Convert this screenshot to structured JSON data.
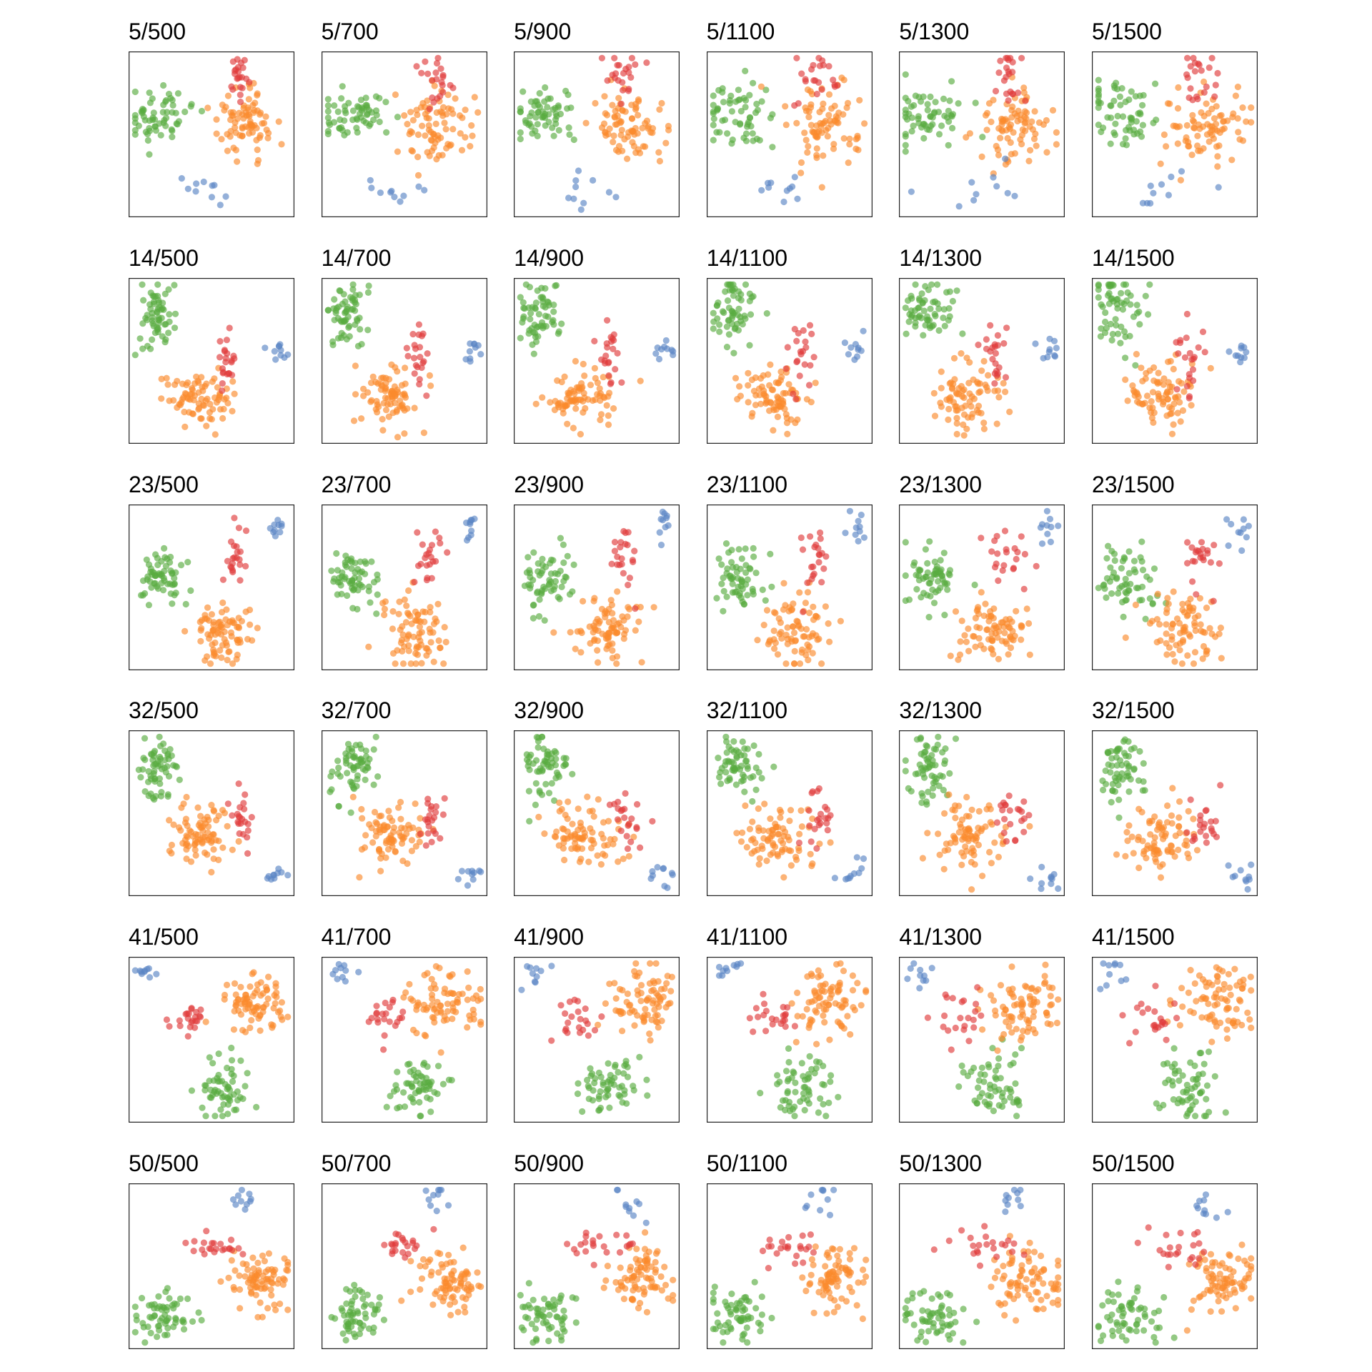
{
  "chart_data": {
    "type": "scatter",
    "layout": "small-multiples grid",
    "rows": 6,
    "cols": 6,
    "axes_visible": false,
    "grid": false,
    "legend": "none",
    "row_params": [
      "5",
      "14",
      "23",
      "32",
      "41",
      "50"
    ],
    "col_params": [
      "500",
      "700",
      "900",
      "1100",
      "1300",
      "1500"
    ],
    "panel_titles": [
      [
        "5/500",
        "5/700",
        "5/900",
        "5/1100",
        "5/1300",
        "5/1500"
      ],
      [
        "14/500",
        "14/700",
        "14/900",
        "14/1100",
        "14/1300",
        "14/1500"
      ],
      [
        "23/500",
        "23/700",
        "23/900",
        "23/1100",
        "23/1300",
        "23/1500"
      ],
      [
        "32/500",
        "32/700",
        "32/900",
        "32/1100",
        "32/1300",
        "32/1500"
      ],
      [
        "41/500",
        "41/700",
        "41/900",
        "41/1100",
        "41/1300",
        "41/1500"
      ],
      [
        "50/500",
        "50/700",
        "50/900",
        "50/1100",
        "50/1300",
        "50/1500"
      ]
    ],
    "series_colors": {
      "green": "#59ac40",
      "orange": "#fb8a2c",
      "red": "#e03c3c",
      "blue": "#5b85c4"
    },
    "point_counts": {
      "green": 60,
      "orange": 80,
      "red": 22,
      "blue": 10
    },
    "cluster_layouts": [
      {
        "row": "5",
        "clusters": [
          {
            "color": "green",
            "cx": 0.18,
            "cy": 0.38,
            "sx": 0.1,
            "sy": 0.08
          },
          {
            "color": "orange",
            "cx": 0.7,
            "cy": 0.45,
            "sx": 0.1,
            "sy": 0.1
          },
          {
            "color": "red",
            "cx": 0.68,
            "cy": 0.15,
            "sx": 0.05,
            "sy": 0.08
          },
          {
            "color": "blue",
            "cx": 0.45,
            "cy": 0.85,
            "sx": 0.1,
            "sy": 0.05
          }
        ]
      },
      {
        "row": "14",
        "clusters": [
          {
            "color": "green",
            "cx": 0.16,
            "cy": 0.2,
            "sx": 0.06,
            "sy": 0.1
          },
          {
            "color": "orange",
            "cx": 0.42,
            "cy": 0.72,
            "sx": 0.09,
            "sy": 0.09
          },
          {
            "color": "red",
            "cx": 0.58,
            "cy": 0.48,
            "sx": 0.03,
            "sy": 0.1
          },
          {
            "color": "blue",
            "cx": 0.9,
            "cy": 0.44,
            "sx": 0.03,
            "sy": 0.03
          }
        ]
      },
      {
        "row": "23",
        "clusters": [
          {
            "color": "green",
            "cx": 0.2,
            "cy": 0.45,
            "sx": 0.07,
            "sy": 0.08
          },
          {
            "color": "orange",
            "cx": 0.56,
            "cy": 0.76,
            "sx": 0.09,
            "sy": 0.1
          },
          {
            "color": "red",
            "cx": 0.65,
            "cy": 0.3,
            "sx": 0.04,
            "sy": 0.1
          },
          {
            "color": "blue",
            "cx": 0.9,
            "cy": 0.14,
            "sx": 0.02,
            "sy": 0.05
          }
        ]
      },
      {
        "row": "32",
        "clusters": [
          {
            "color": "green",
            "cx": 0.18,
            "cy": 0.22,
            "sx": 0.06,
            "sy": 0.09
          },
          {
            "color": "orange",
            "cx": 0.42,
            "cy": 0.64,
            "sx": 0.1,
            "sy": 0.09
          },
          {
            "color": "red",
            "cx": 0.68,
            "cy": 0.55,
            "sx": 0.04,
            "sy": 0.08
          },
          {
            "color": "blue",
            "cx": 0.9,
            "cy": 0.88,
            "sx": 0.04,
            "sy": 0.03
          }
        ]
      },
      {
        "row": "41",
        "clusters": [
          {
            "color": "green",
            "cx": 0.58,
            "cy": 0.78,
            "sx": 0.08,
            "sy": 0.08
          },
          {
            "color": "orange",
            "cx": 0.76,
            "cy": 0.28,
            "sx": 0.11,
            "sy": 0.09
          },
          {
            "color": "red",
            "cx": 0.38,
            "cy": 0.37,
            "sx": 0.06,
            "sy": 0.06
          },
          {
            "color": "blue",
            "cx": 0.12,
            "cy": 0.09,
            "sx": 0.04,
            "sy": 0.03
          }
        ]
      },
      {
        "row": "50",
        "clusters": [
          {
            "color": "green",
            "cx": 0.2,
            "cy": 0.8,
            "sx": 0.09,
            "sy": 0.07
          },
          {
            "color": "orange",
            "cx": 0.78,
            "cy": 0.58,
            "sx": 0.09,
            "sy": 0.09
          },
          {
            "color": "red",
            "cx": 0.52,
            "cy": 0.38,
            "sx": 0.1,
            "sy": 0.04
          },
          {
            "color": "blue",
            "cx": 0.68,
            "cy": 0.1,
            "sx": 0.03,
            "sy": 0.05
          }
        ]
      }
    ]
  }
}
